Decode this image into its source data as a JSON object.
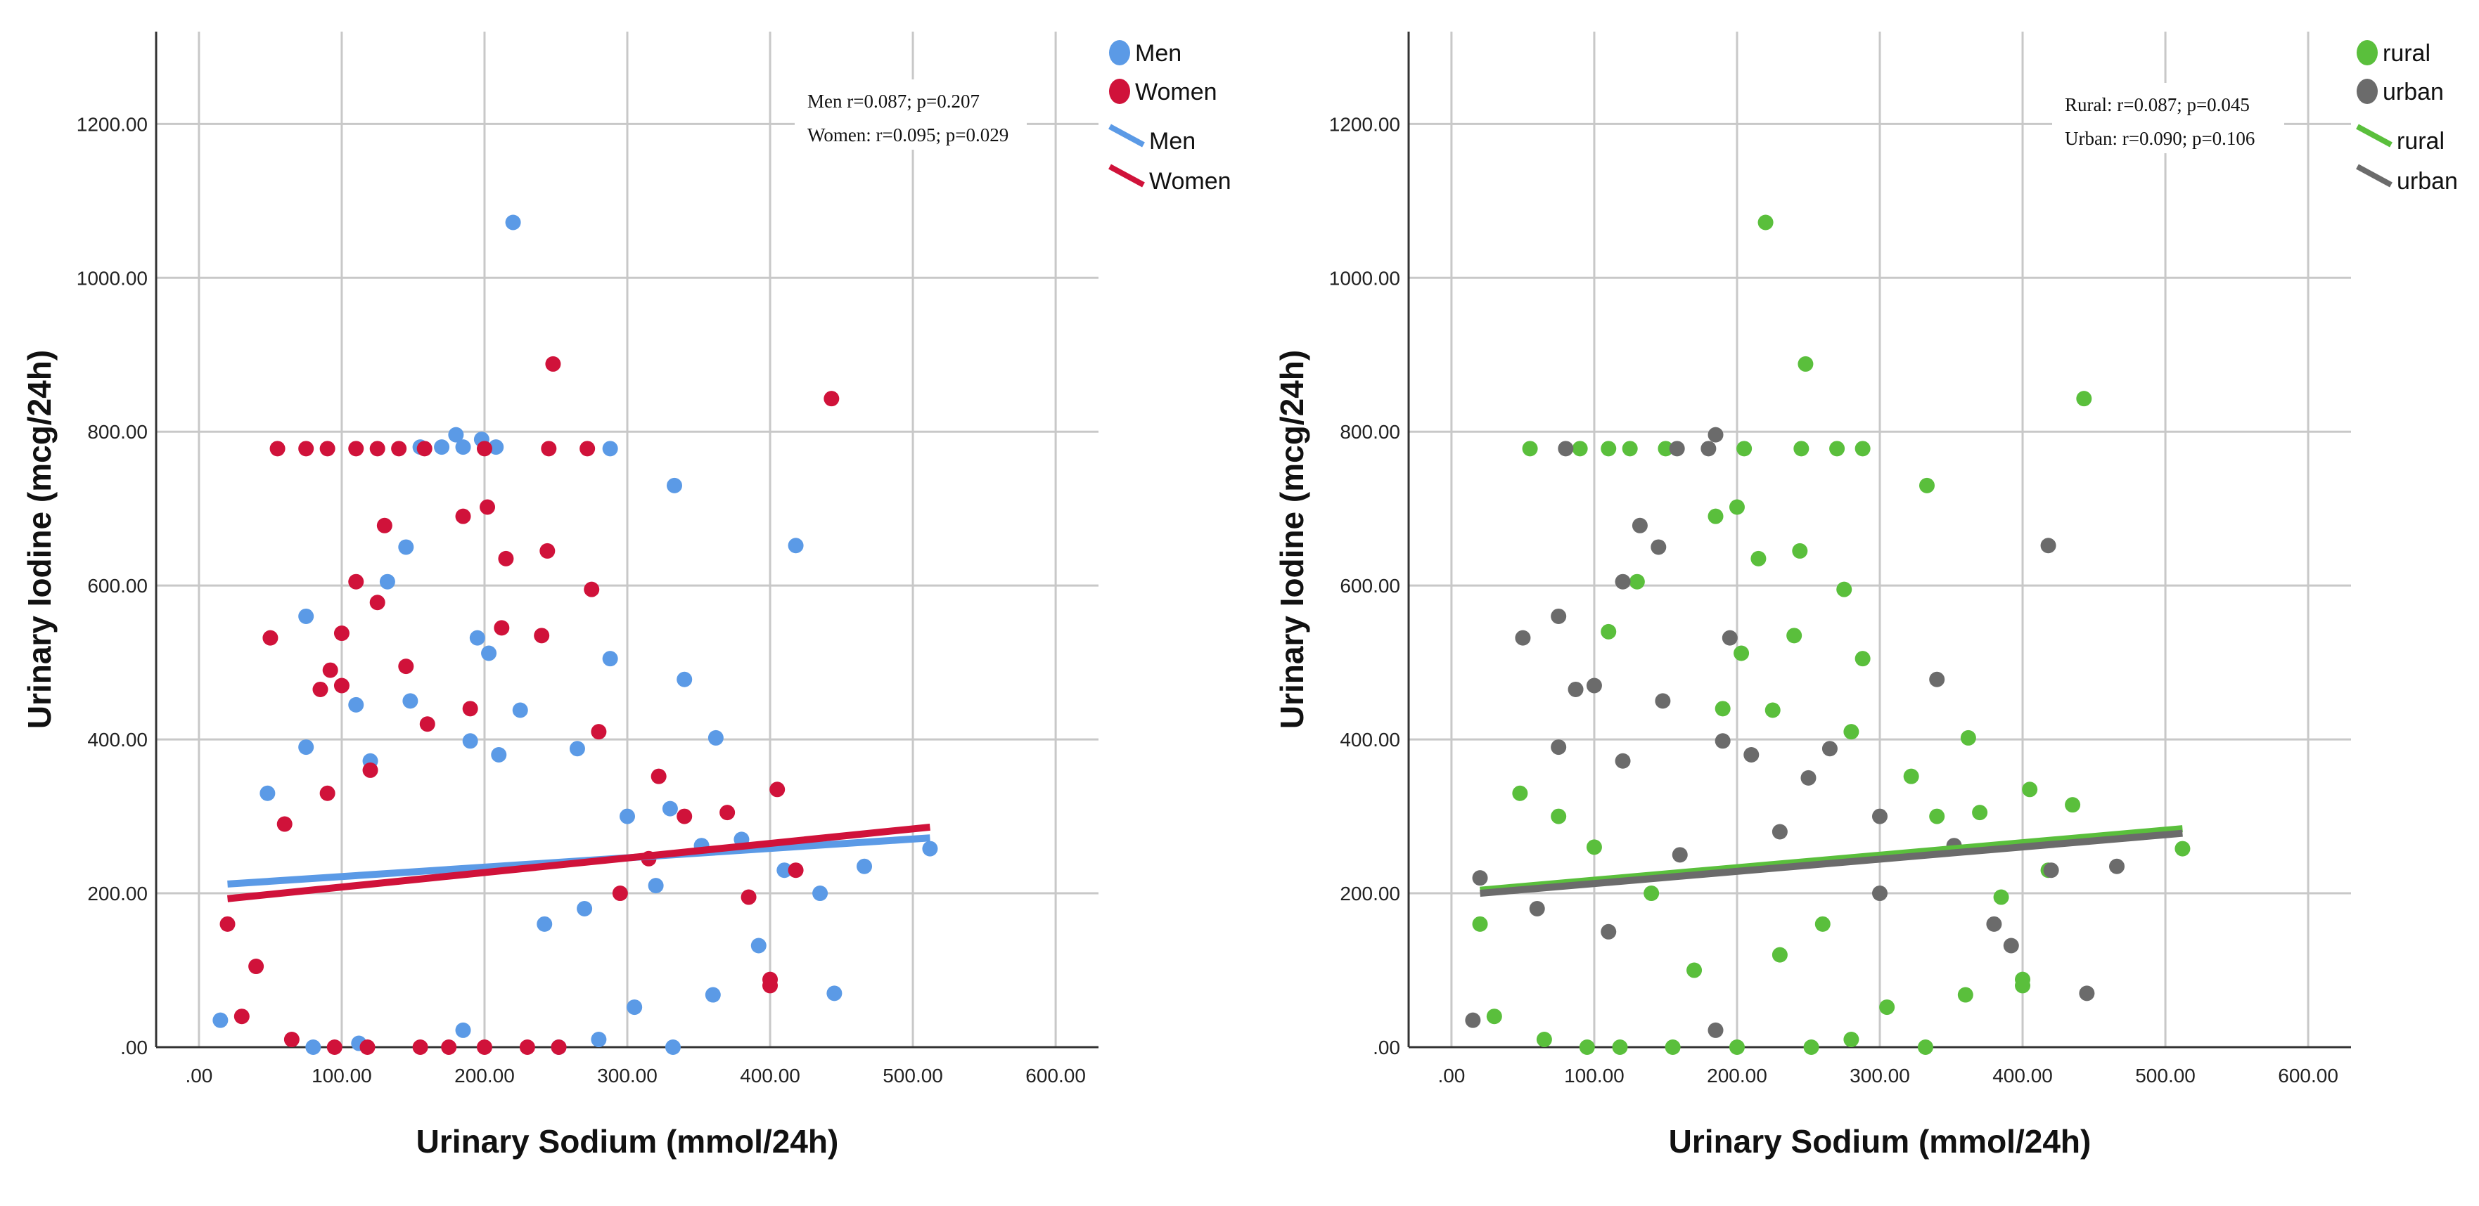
{
  "chart_data": [
    {
      "type": "scatter",
      "xlabel": "Urinary Sodium (mmol/24h)",
      "ylabel": "Urinary Iodine (mcg/24h)",
      "xlim": [
        -30,
        630
      ],
      "ylim": [
        0,
        1320
      ],
      "x_ticks": [
        0,
        100,
        200,
        300,
        400,
        500,
        600
      ],
      "y_ticks": [
        0,
        200,
        400,
        600,
        800,
        1000,
        1200
      ],
      "x_tick_labels": [
        ".00",
        "100.00",
        "200.00",
        "300.00",
        "400.00",
        "500.00",
        "600.00"
      ],
      "y_tick_labels": [
        ".00",
        "200.00",
        "400.00",
        "600.00",
        "800.00",
        "1000.00",
        "1200.00"
      ],
      "grid": true,
      "legend_position": "top-right outside",
      "legend": [
        {
          "label": "Men",
          "kind": "marker",
          "color": "#5b9ae6"
        },
        {
          "label": "Women",
          "kind": "marker",
          "color": "#d0123a"
        },
        {
          "label": "Men",
          "kind": "line",
          "color": "#5b9ae6"
        },
        {
          "label": "Women",
          "kind": "line",
          "color": "#d0123a"
        }
      ],
      "annotations": [
        "Men r=0.087; p=0.207",
        "Women: r=0.095; p=0.029"
      ],
      "series": [
        {
          "name": "Men",
          "color": "#5b9ae6",
          "points": [
            [
              220,
              1072
            ],
            [
              198,
              790
            ],
            [
              180,
              796
            ],
            [
              185,
              780
            ],
            [
              155,
              780
            ],
            [
              170,
              780
            ],
            [
              208,
              780
            ],
            [
              288,
              778
            ],
            [
              333,
              730
            ],
            [
              418,
              652
            ],
            [
              145,
              650
            ],
            [
              132,
              605
            ],
            [
              75,
              560
            ],
            [
              203,
              512
            ],
            [
              288,
              505
            ],
            [
              195,
              532
            ],
            [
              340,
              478
            ],
            [
              110,
              445
            ],
            [
              148,
              450
            ],
            [
              225,
              438
            ],
            [
              362,
              402
            ],
            [
              75,
              390
            ],
            [
              190,
              398
            ],
            [
              120,
              372
            ],
            [
              210,
              380
            ],
            [
              265,
              388
            ],
            [
              300,
              300
            ],
            [
              330,
              310
            ],
            [
              352,
              262
            ],
            [
              410,
              230
            ],
            [
              435,
              200
            ],
            [
              466,
              235
            ],
            [
              512,
              258
            ],
            [
              445,
              70
            ],
            [
              392,
              132
            ],
            [
              360,
              68
            ],
            [
              305,
              52
            ],
            [
              280,
              10
            ],
            [
              332,
              0
            ],
            [
              252,
              0
            ],
            [
              185,
              22
            ],
            [
              80,
              0
            ],
            [
              112,
              5
            ],
            [
              15,
              35
            ],
            [
              48,
              330
            ],
            [
              380,
              270
            ],
            [
              320,
              210
            ],
            [
              270,
              180
            ],
            [
              242,
              160
            ]
          ],
          "fit": {
            "x": [
              20,
              512
            ],
            "y": [
              212,
              272
            ]
          }
        },
        {
          "name": "Women",
          "color": "#d0123a",
          "points": [
            [
              248,
              888
            ],
            [
              443,
              843
            ],
            [
              55,
              778
            ],
            [
              75,
              778
            ],
            [
              90,
              778
            ],
            [
              110,
              778
            ],
            [
              125,
              778
            ],
            [
              140,
              778
            ],
            [
              158,
              778
            ],
            [
              200,
              778
            ],
            [
              245,
              778
            ],
            [
              272,
              778
            ],
            [
              130,
              678
            ],
            [
              202,
              702
            ],
            [
              185,
              690
            ],
            [
              244,
              645
            ],
            [
              215,
              635
            ],
            [
              110,
              605
            ],
            [
              125,
              578
            ],
            [
              50,
              532
            ],
            [
              240,
              535
            ],
            [
              275,
              595
            ],
            [
              100,
              538
            ],
            [
              212,
              545
            ],
            [
              92,
              490
            ],
            [
              85,
              465
            ],
            [
              100,
              470
            ],
            [
              145,
              495
            ],
            [
              322,
              352
            ],
            [
              370,
              305
            ],
            [
              405,
              335
            ],
            [
              418,
              230
            ],
            [
              400,
              80
            ],
            [
              400,
              88
            ],
            [
              340,
              300
            ],
            [
              315,
              245
            ],
            [
              295,
              200
            ],
            [
              252,
              0
            ],
            [
              230,
              0
            ],
            [
              200,
              0
            ],
            [
              175,
              0
            ],
            [
              155,
              0
            ],
            [
              118,
              0
            ],
            [
              65,
              10
            ],
            [
              95,
              0
            ],
            [
              30,
              40
            ],
            [
              20,
              160
            ],
            [
              40,
              105
            ],
            [
              385,
              195
            ],
            [
              280,
              410
            ],
            [
              190,
              440
            ],
            [
              160,
              420
            ],
            [
              120,
              360
            ],
            [
              90,
              330
            ],
            [
              60,
              290
            ]
          ],
          "fit": {
            "x": [
              20,
              512
            ],
            "y": [
              193,
              286
            ]
          }
        }
      ]
    },
    {
      "type": "scatter",
      "xlabel": "Urinary Sodium (mmol/24h)",
      "ylabel": "Urinary Iodine (mcg/24h)",
      "xlim": [
        -30,
        630
      ],
      "ylim": [
        0,
        1320
      ],
      "x_ticks": [
        0,
        100,
        200,
        300,
        400,
        500,
        600
      ],
      "y_ticks": [
        0,
        200,
        400,
        600,
        800,
        1000,
        1200
      ],
      "x_tick_labels": [
        ".00",
        "100.00",
        "200.00",
        "300.00",
        "400.00",
        "500.00",
        "600.00"
      ],
      "y_tick_labels": [
        ".00",
        "200.00",
        "400.00",
        "600.00",
        "800.00",
        "1000.00",
        "1200.00"
      ],
      "grid": true,
      "legend_position": "top-right outside",
      "legend": [
        {
          "label": "rural",
          "kind": "marker",
          "color": "#5abf3c"
        },
        {
          "label": "urban",
          "kind": "marker",
          "color": "#6b6b6b"
        },
        {
          "label": "rural",
          "kind": "line",
          "color": "#5abf3c"
        },
        {
          "label": "urban",
          "kind": "line",
          "color": "#6b6b6b"
        }
      ],
      "annotations": [
        "Rural: r=0.087; p=0.045",
        "Urban: r=0.090; p=0.106"
      ],
      "series": [
        {
          "name": "rural",
          "color": "#5abf3c",
          "points": [
            [
              220,
              1072
            ],
            [
              248,
              888
            ],
            [
              443,
              843
            ],
            [
              55,
              778
            ],
            [
              90,
              778
            ],
            [
              110,
              778
            ],
            [
              125,
              778
            ],
            [
              150,
              778
            ],
            [
              205,
              778
            ],
            [
              245,
              778
            ],
            [
              270,
              778
            ],
            [
              288,
              778
            ],
            [
              333,
              730
            ],
            [
              200,
              702
            ],
            [
              185,
              690
            ],
            [
              215,
              635
            ],
            [
              244,
              645
            ],
            [
              130,
              605
            ],
            [
              275,
              595
            ],
            [
              110,
              540
            ],
            [
              203,
              512
            ],
            [
              288,
              505
            ],
            [
              240,
              535
            ],
            [
              225,
              438
            ],
            [
              362,
              402
            ],
            [
              405,
              335
            ],
            [
              370,
              305
            ],
            [
              435,
              315
            ],
            [
              512,
              258
            ],
            [
              418,
              230
            ],
            [
              400,
              80
            ],
            [
              400,
              88
            ],
            [
              360,
              68
            ],
            [
              305,
              52
            ],
            [
              280,
              10
            ],
            [
              332,
              0
            ],
            [
              252,
              0
            ],
            [
              200,
              0
            ],
            [
              155,
              0
            ],
            [
              118,
              0
            ],
            [
              95,
              0
            ],
            [
              65,
              10
            ],
            [
              48,
              330
            ],
            [
              30,
              40
            ],
            [
              20,
              160
            ],
            [
              340,
              300
            ],
            [
              385,
              195
            ],
            [
              322,
              352
            ],
            [
              280,
              410
            ],
            [
              190,
              440
            ],
            [
              260,
              160
            ],
            [
              230,
              120
            ],
            [
              170,
              100
            ],
            [
              140,
              200
            ],
            [
              100,
              260
            ],
            [
              75,
              300
            ]
          ],
          "fit": {
            "x": [
              20,
              512
            ],
            "y": [
              204,
              284
            ]
          }
        },
        {
          "name": "urban",
          "color": "#6b6b6b",
          "points": [
            [
              185,
              796
            ],
            [
              80,
              778
            ],
            [
              158,
              778
            ],
            [
              180,
              778
            ],
            [
              418,
              652
            ],
            [
              132,
              678
            ],
            [
              145,
              650
            ],
            [
              120,
              605
            ],
            [
              75,
              560
            ],
            [
              50,
              532
            ],
            [
              195,
              532
            ],
            [
              100,
              470
            ],
            [
              87,
              465
            ],
            [
              340,
              478
            ],
            [
              148,
              450
            ],
            [
              120,
              372
            ],
            [
              190,
              398
            ],
            [
              75,
              390
            ],
            [
              210,
              380
            ],
            [
              265,
              388
            ],
            [
              300,
              300
            ],
            [
              352,
              262
            ],
            [
              466,
              235
            ],
            [
              445,
              70
            ],
            [
              392,
              132
            ],
            [
              15,
              35
            ],
            [
              185,
              22
            ],
            [
              20,
              220
            ],
            [
              60,
              180
            ],
            [
              110,
              150
            ],
            [
              160,
              250
            ],
            [
              230,
              280
            ],
            [
              300,
              200
            ],
            [
              380,
              160
            ],
            [
              420,
              230
            ],
            [
              250,
              350
            ]
          ],
          "fit": {
            "x": [
              20,
              512
            ],
            "y": [
              200,
              278
            ]
          }
        }
      ]
    }
  ]
}
